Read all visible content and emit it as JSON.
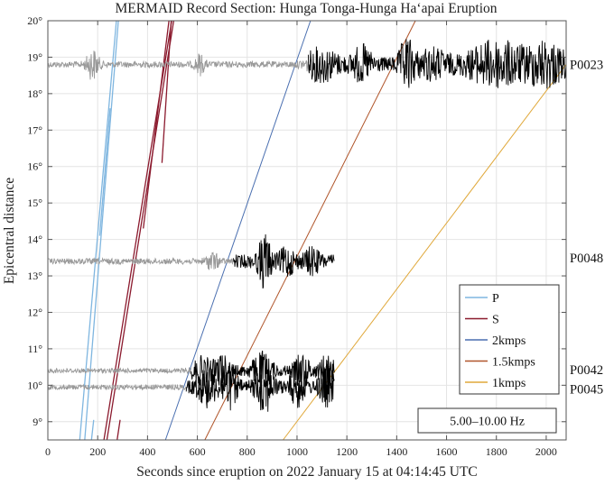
{
  "chart_data": {
    "type": "line",
    "title": "MERMAID Record Section: Hunga Tonga-Hunga Ha‘apai Eruption",
    "xlabel": "Seconds since eruption on 2022 January 15 at 04:14:45 UTC",
    "ylabel": "Epicentral distance",
    "xlim": [
      0,
      2080
    ],
    "ylim": [
      8.5,
      20
    ],
    "x_ticks": [
      0,
      200,
      400,
      600,
      800,
      1000,
      1200,
      1400,
      1600,
      1800,
      2000
    ],
    "y_ticks": [
      9,
      10,
      11,
      12,
      13,
      14,
      15,
      16,
      17,
      18,
      19,
      20
    ],
    "grid": true,
    "band_label": "5.00–10.00 Hz",
    "legend_position": "bottom-right",
    "colors": {
      "P": "#7fb6e0",
      "S": "#8b1a2e",
      "2kmps": "#4a6fb0",
      "1.5kmps": "#b0552a",
      "1kmps": "#e0a83a",
      "pre_arrival": "#9a9a9a",
      "post_arrival": "#000000"
    },
    "moveout_lines": [
      {
        "name": "2kmps",
        "points": [
          [
            472,
            8.5
          ],
          [
            1054,
            20
          ]
        ]
      },
      {
        "name": "1.5kmps",
        "points": [
          [
            630,
            8.5
          ],
          [
            1475,
            20
          ]
        ]
      },
      {
        "name": "1kmps",
        "points": [
          [
            944,
            8.5
          ],
          [
            2080,
            18.8
          ]
        ]
      }
    ],
    "phase_branches": [
      {
        "name": "P",
        "points": [
          [
            128,
            8.5
          ],
          [
            275,
            20
          ]
        ]
      },
      {
        "name": "P",
        "points": [
          [
            148,
            8.5
          ],
          [
            283,
            20
          ]
        ]
      },
      {
        "name": "P",
        "points": [
          [
            208,
            14.1
          ],
          [
            250,
            17.6
          ]
        ]
      },
      {
        "name": "P",
        "points": [
          [
            175,
            8.5
          ],
          [
            184,
            9.05
          ]
        ]
      },
      {
        "name": "S",
        "points": [
          [
            225,
            8.5
          ],
          [
            497,
            20
          ]
        ]
      },
      {
        "name": "S",
        "points": [
          [
            237,
            8.5
          ],
          [
            505,
            20
          ]
        ]
      },
      {
        "name": "S",
        "points": [
          [
            383,
            14.3
          ],
          [
            486,
            20
          ]
        ]
      },
      {
        "name": "S",
        "points": [
          [
            458,
            16.1
          ],
          [
            495,
            20
          ]
        ]
      },
      {
        "name": "S",
        "points": [
          [
            278,
            8.5
          ],
          [
            290,
            9.05
          ]
        ]
      }
    ],
    "traces": [
      {
        "station": "P0023",
        "distance": 18.8,
        "start": 0,
        "end": 2080,
        "arrival": 1045,
        "max_amp": 0.95
      },
      {
        "station": "P0048",
        "distance": 13.4,
        "start": 0,
        "end": 1150,
        "arrival": 745,
        "max_amp": 0.9
      },
      {
        "station": "P0042",
        "distance": 10.4,
        "start": 0,
        "end": 1150,
        "arrival": 575,
        "max_amp": 0.7
      },
      {
        "station": "P0045",
        "distance": 9.95,
        "start": 0,
        "end": 1150,
        "arrival": 555,
        "max_amp": 0.8
      }
    ],
    "legend": [
      "P",
      "S",
      "2kmps",
      "1.5kmps",
      "1kmps"
    ]
  }
}
